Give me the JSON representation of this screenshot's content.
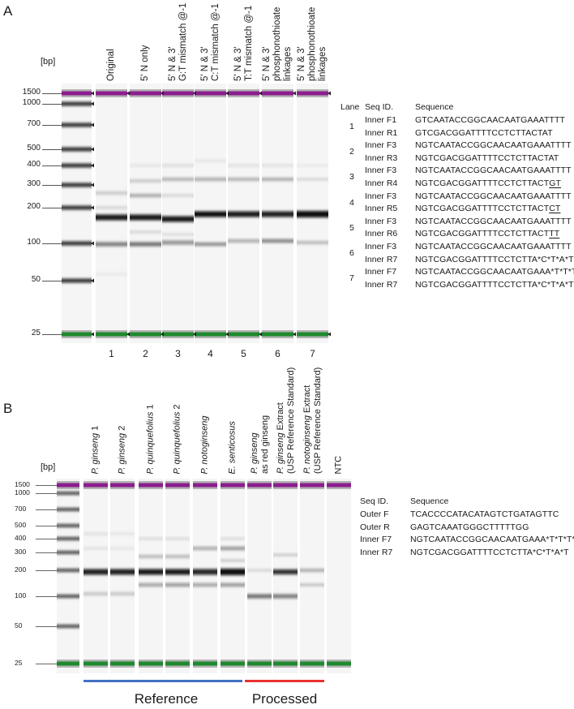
{
  "panel_a": {
    "letter": "A",
    "bp_unit": "[bp]",
    "ladder_labels": [
      "1500",
      "1000",
      "700",
      "500",
      "400",
      "300",
      "200",
      "100",
      "50",
      "25"
    ],
    "lane_titles": [
      [
        "Original"
      ],
      [
        "5' N only"
      ],
      [
        "5' N & 3'",
        "G:T mismatch @-1"
      ],
      [
        "5' N & 3'",
        "C:T mismatch @-1"
      ],
      [
        "5' N & 3'",
        "T:T mismatch @-1"
      ],
      [
        "5' N & 3'",
        "phosphonothioate",
        "linkages"
      ],
      [
        "5' N & 3'",
        "phosphonothioate",
        "linkages"
      ]
    ],
    "lane_numbers": [
      "1",
      "2",
      "3",
      "4",
      "5",
      "6",
      "7"
    ],
    "table": {
      "headers": {
        "lane": "Lane",
        "seq_id": "Seq ID.",
        "sequence": "Sequence"
      },
      "groups": [
        {
          "lane": "1",
          "rows": [
            {
              "id": "Inner F1",
              "seq": "GTCAATACCGGCAACAATGAAATTTT"
            },
            {
              "id": "Inner R1",
              "seq": "GTCGACGGATTTTCCTCTTACTAT"
            }
          ]
        },
        {
          "lane": "2",
          "rows": [
            {
              "id": "Inner F3",
              "seq": "NGTCAATACCGGCAACAATGAAATTTT"
            },
            {
              "id": "Inner R3",
              "seq": "NGTCGACGGATTTTCCTCTTACTAT"
            }
          ]
        },
        {
          "lane": "3",
          "rows": [
            {
              "id": "Inner F3",
              "seq": "NGTCAATACCGGCAACAATGAAATTTT"
            },
            {
              "id": "Inner R4",
              "seq": "NGTCGACGGATTTTCCTCTTACT",
              "seq_underlined": "GT"
            }
          ]
        },
        {
          "lane": "4",
          "rows": [
            {
              "id": "Inner F3",
              "seq": "NGTCAATACCGGCAACAATGAAATTTT"
            },
            {
              "id": "Inner R5",
              "seq": "NGTCGACGGATTTTCCTCTTACT",
              "seq_underlined": "CT"
            }
          ]
        },
        {
          "lane": "5",
          "rows": [
            {
              "id": "Inner F3",
              "seq": "NGTCAATACCGGCAACAATGAAATTTT"
            },
            {
              "id": "Inner R6",
              "seq": "NGTCGACGGATTTTCCTCTTACT",
              "seq_underlined": "TT"
            }
          ]
        },
        {
          "lane": "6",
          "rows": [
            {
              "id": "Inner F3",
              "seq": "NGTCAATACCGGCAACAATGAAATTTT"
            },
            {
              "id": "Inner R7",
              "seq": "NGTCGACGGATTTTCCTCTTA*C*T*A*T"
            }
          ]
        },
        {
          "lane": "7",
          "rows": [
            {
              "id": "Inner F7",
              "seq": "NGTCAATACCGGCAACAATGAAA*T*T*T*T"
            },
            {
              "id": "Inner R7",
              "seq": "NGTCGACGGATTTTCCTCTTA*C*T*A*T"
            }
          ]
        }
      ]
    }
  },
  "panel_b": {
    "letter": "B",
    "bp_unit": "[bp]",
    "ladder_labels": [
      "1500",
      "1000",
      "700",
      "500",
      "400",
      "300",
      "200",
      "100",
      "50",
      "25"
    ],
    "lane_titles": [
      [
        {
          "t": "P. ginseng",
          "i": true
        },
        {
          "t": " 1",
          "i": false
        }
      ],
      [
        {
          "t": "P. ginseng",
          "i": true
        },
        {
          "t": " 2",
          "i": false
        }
      ],
      [
        {
          "t": "P. quinquefolius",
          "i": true
        },
        {
          "t": " 1",
          "i": false
        }
      ],
      [
        {
          "t": "P. quinquefolius",
          "i": true
        },
        {
          "t": " 2",
          "i": false
        }
      ],
      [
        {
          "t": "P. notoginseng",
          "i": true
        }
      ],
      [
        {
          "t": "E. senticosus",
          "i": true
        }
      ],
      [
        {
          "t": "P. ginseng",
          "i": true
        },
        {
          "t": "|as red ginseng",
          "i": false
        }
      ],
      [
        {
          "t": "P. ginseng",
          "i": true
        },
        {
          "t": " Extract|(USP Reference Standard)",
          "i": false
        }
      ],
      [
        {
          "t": "P. notoginseng",
          "i": true
        },
        {
          "t": " Extract|(USP Reference Standard)",
          "i": false
        }
      ],
      [
        {
          "t": "NTC",
          "i": false
        }
      ]
    ],
    "table": {
      "headers": {
        "seq_id": "Seq ID.",
        "sequence": "Sequence"
      },
      "rows": [
        {
          "id": "Outer F",
          "seq": "TCACCCCATACATAGTCTGATAGTTC"
        },
        {
          "id": "Outer R",
          "seq": "GAGTCAAATGGGCTTTTTGG"
        },
        {
          "id": "Inner F7",
          "seq": "NGTCAATACCGGCAACAATGAAA*T*T*T*T"
        },
        {
          "id": "Inner R7",
          "seq": "NGTCGACGGATTTTCCTCTTA*C*T*A*T"
        }
      ]
    },
    "group_labels": {
      "reference": "Reference",
      "processed": "Processed"
    },
    "colors": {
      "reference_bar": "#4472c4",
      "processed_bar": "#e8312f"
    }
  },
  "colors": {
    "upper_marker": "#8b1e8f",
    "lower_marker": "#1e8a2e",
    "band": "#111111",
    "lane_bg": "#f5f5f5"
  }
}
